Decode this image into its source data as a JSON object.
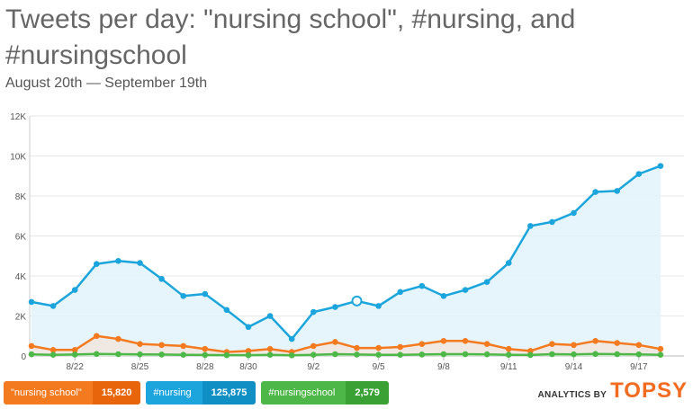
{
  "title": "Tweets per day: \"nursing school\", #nursing, and #nursingschool",
  "subtitle": "August 20th — September 19th",
  "legend": [
    {
      "name": "\"nursing school\"",
      "total": "15,820",
      "color": "#f47a20",
      "dark": "#e8650b"
    },
    {
      "name": "#nursing",
      "total": "125,875",
      "color": "#1ba5dc",
      "dark": "#0f8fc4"
    },
    {
      "name": "#nursingschool",
      "total": "2,579",
      "color": "#4db848",
      "dark": "#3aa235"
    }
  ],
  "brand": {
    "small": "ANALYTICS BY",
    "big": "TOPSY"
  },
  "chart_data": {
    "type": "area",
    "title": "Tweets per day: \"nursing school\", #nursing, and #nursingschool",
    "subtitle": "August 20th — September 19th",
    "x": [
      "8/20",
      "8/21",
      "8/22",
      "8/23",
      "8/24",
      "8/25",
      "8/26",
      "8/27",
      "8/28",
      "8/29",
      "8/30",
      "8/31",
      "9/1",
      "9/2",
      "9/3",
      "9/4",
      "9/5",
      "9/6",
      "9/7",
      "9/8",
      "9/9",
      "9/10",
      "9/11",
      "9/12",
      "9/13",
      "9/14",
      "9/15",
      "9/16",
      "9/17",
      "9/18",
      "9/19"
    ],
    "x_tick_labels": [
      "8/22",
      "8/25",
      "8/28",
      "8/30",
      "9/2",
      "9/5",
      "9/8",
      "9/11",
      "9/14",
      "9/17"
    ],
    "ylim": [
      0,
      12000
    ],
    "y_ticks": [
      0,
      2000,
      4000,
      6000,
      8000,
      10000,
      12000
    ],
    "y_tick_labels": [
      "0",
      "2K",
      "4K",
      "6K",
      "8K",
      "10K",
      "12K"
    ],
    "grid": true,
    "series": [
      {
        "name": "#nursing",
        "color": "#1ba5dc",
        "fill": "#e2f3fb",
        "values": [
          2700,
          2500,
          3300,
          4600,
          4750,
          4650,
          3850,
          3000,
          3100,
          2300,
          1450,
          2000,
          850,
          2200,
          2450,
          2750,
          2500,
          3200,
          3500,
          3000,
          3300,
          3700,
          4650,
          6500,
          6700,
          7150,
          8200,
          8250,
          9100,
          9500,
          null
        ],
        "highlight_index": 15
      },
      {
        "name": "\"nursing school\"",
        "color": "#f47a20",
        "fill": "#f1e6de",
        "values": [
          500,
          300,
          300,
          1000,
          850,
          600,
          550,
          500,
          350,
          200,
          250,
          350,
          200,
          500,
          700,
          400,
          400,
          450,
          600,
          750,
          750,
          600,
          350,
          250,
          600,
          550,
          750,
          650,
          550,
          350,
          null
        ]
      },
      {
        "name": "#nursingschool",
        "color": "#4db848",
        "fill": "#dff1de",
        "values": [
          80,
          60,
          70,
          100,
          90,
          80,
          70,
          60,
          50,
          40,
          40,
          60,
          30,
          60,
          90,
          70,
          60,
          60,
          70,
          90,
          90,
          80,
          60,
          50,
          90,
          80,
          100,
          90,
          80,
          60,
          null
        ]
      }
    ]
  }
}
